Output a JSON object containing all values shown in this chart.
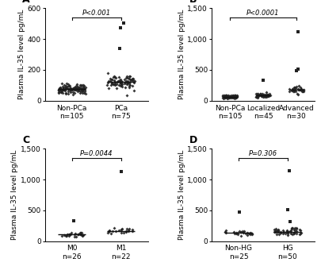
{
  "panels": {
    "A": {
      "label": "A",
      "p_text": "P<0.001",
      "groups": [
        {
          "name": "Non-PCa",
          "n": 105,
          "median": 75,
          "spread": 22,
          "min": 25,
          "max": 130,
          "high_outliers": [],
          "marker": "D"
        },
        {
          "name": "PCa",
          "n": 75,
          "median": 120,
          "spread": 35,
          "min": 35,
          "max": 200,
          "high_outliers": [
            340,
            475,
            505
          ],
          "marker": "D"
        }
      ],
      "ylim": [
        0,
        600
      ],
      "yticks": [
        0,
        200,
        400,
        600
      ],
      "ylabel": "Plasma IL-35 level pg/mL"
    },
    "B": {
      "label": "B",
      "p_text": "P<0.0001",
      "groups": [
        {
          "name": "Non-PCa",
          "n": 105,
          "median": 65,
          "spread": 18,
          "min": 20,
          "max": 110,
          "high_outliers": [],
          "marker": "D"
        },
        {
          "name": "Localized",
          "n": 45,
          "median": 90,
          "spread": 28,
          "min": 30,
          "max": 150,
          "high_outliers": [
            330
          ],
          "marker": "D"
        },
        {
          "name": "Advanced",
          "n": 30,
          "median": 175,
          "spread": 45,
          "min": 80,
          "max": 275,
          "high_outliers": [
            480,
            510,
            1120
          ],
          "marker": "s"
        }
      ],
      "ylim": [
        0,
        1500
      ],
      "yticks": [
        0,
        500,
        1000,
        1500
      ],
      "ylabel": "Plasma IL-35 level pg/mL"
    },
    "C": {
      "label": "C",
      "p_text": "P=0.0044",
      "groups": [
        {
          "name": "M0",
          "n": 26,
          "median": 110,
          "spread": 28,
          "min": 40,
          "max": 175,
          "high_outliers": [
            330
          ],
          "marker": "D"
        },
        {
          "name": "M1",
          "n": 22,
          "median": 170,
          "spread": 35,
          "min": 80,
          "max": 260,
          "high_outliers": [
            1130
          ],
          "marker": "s"
        }
      ],
      "ylim": [
        0,
        1500
      ],
      "yticks": [
        0,
        500,
        1000,
        1500
      ],
      "ylabel": "Plasma IL-35 level pg/mL"
    },
    "D": {
      "label": "D",
      "p_text": "P=0.306",
      "groups": [
        {
          "name": "Non-HG",
          "n": 25,
          "median": 130,
          "spread": 35,
          "min": 50,
          "max": 190,
          "high_outliers": [
            470
          ],
          "marker": "D"
        },
        {
          "name": "HG",
          "n": 50,
          "median": 155,
          "spread": 40,
          "min": 55,
          "max": 285,
          "high_outliers": [
            320,
            510,
            1140
          ],
          "marker": "s"
        }
      ],
      "ylim": [
        0,
        1500
      ],
      "yticks": [
        0,
        500,
        1000,
        1500
      ],
      "ylabel": "Plasma IL-35 level pg/mL"
    }
  },
  "marker_color": "#222222",
  "line_color": "#111111",
  "font_family": "Arial",
  "tick_fontsize": 6.5,
  "label_fontsize": 6.5,
  "panel_label_fontsize": 9
}
